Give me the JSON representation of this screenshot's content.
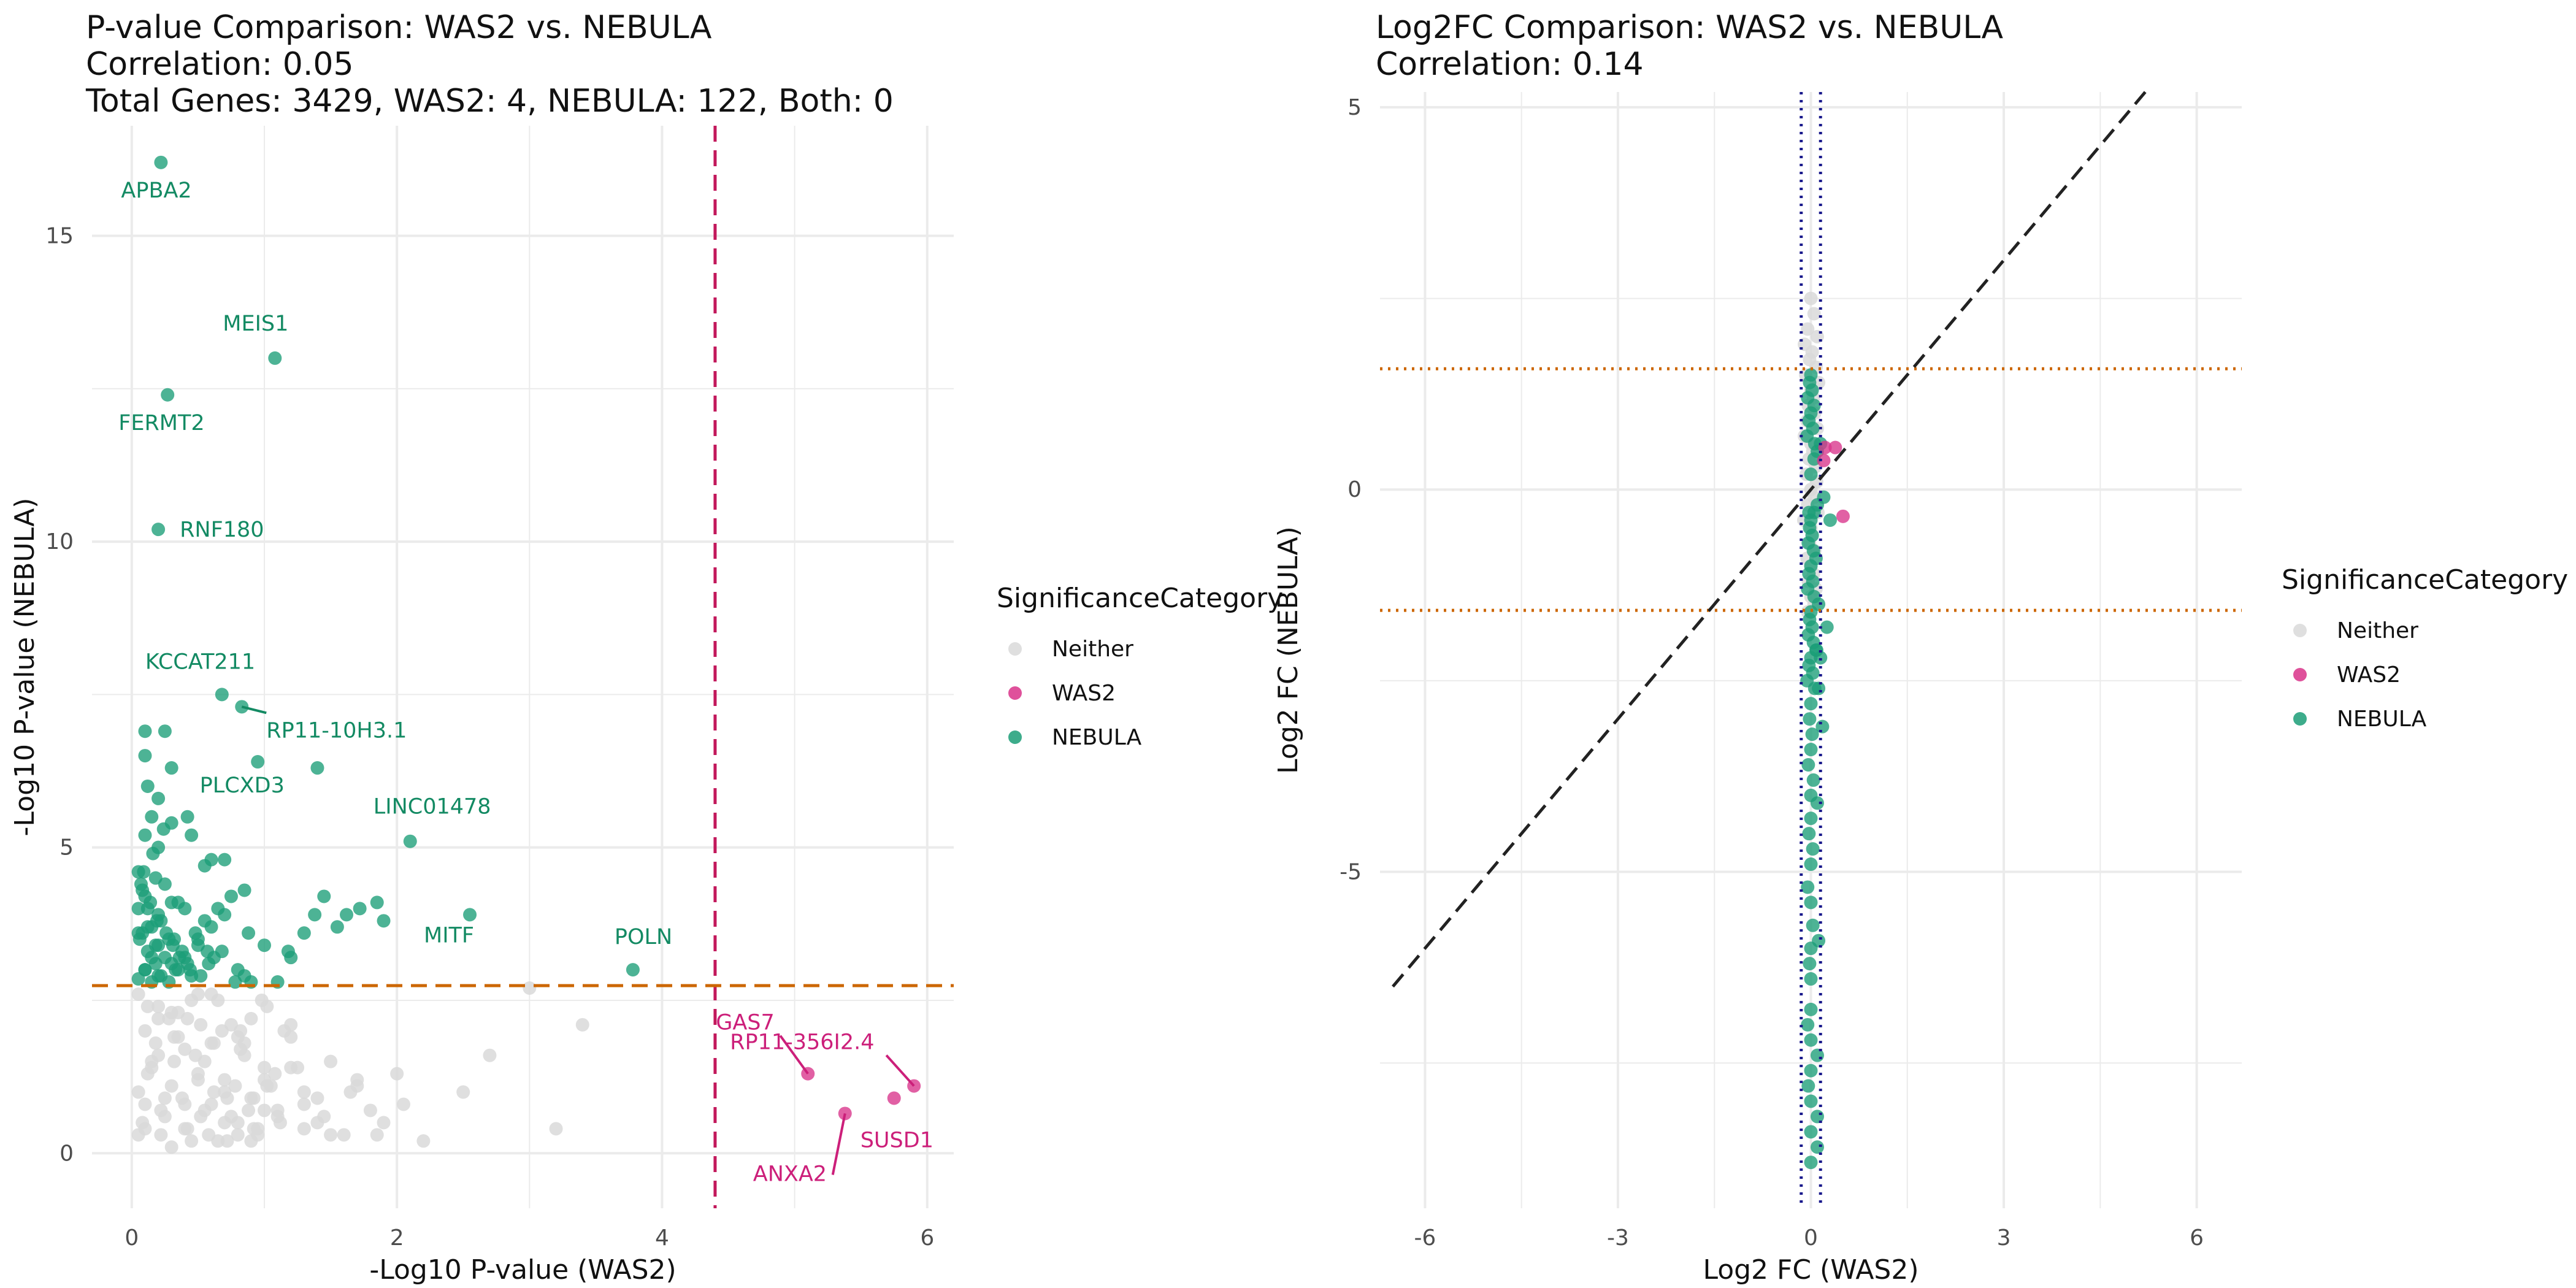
{
  "chart_data": [
    {
      "type": "scatter",
      "title_lines": [
        "P-value Comparison: WAS2 vs. NEBULA",
        "Correlation: 0.05",
        "Total Genes: 3429, WAS2: 4, NEBULA: 122, Both: 0"
      ],
      "xlabel": "-Log10 P-value (WAS2)",
      "ylabel": "-Log10 P-value (NEBULA)",
      "xlim": [
        -0.3,
        6.2
      ],
      "ylim": [
        -0.9,
        16.8
      ],
      "xticks": [
        0,
        2,
        4,
        6
      ],
      "yticks": [
        0,
        5,
        10,
        15
      ],
      "grid": true,
      "reference_lines": [
        {
          "orientation": "vertical",
          "value": 4.4,
          "color": "#c2185b",
          "style": "dashed"
        },
        {
          "orientation": "horizontal",
          "value": 2.74,
          "color": "#cc6600",
          "style": "dashed"
        }
      ],
      "legend": {
        "title": "SignificanceCategory",
        "position": "right",
        "entries": [
          "Neither",
          "WAS2",
          "NEBULA"
        ]
      },
      "colors": {
        "Neither": "#d9d9d9",
        "WAS2": "#d9338a",
        "NEBULA": "#1b9e77"
      },
      "series": [
        {
          "name": "Neither",
          "x": [
            0.05,
            0.1,
            0.15,
            0.2,
            0.25,
            0.3,
            0.35,
            0.4,
            0.45,
            0.5,
            0.55,
            0.6,
            0.65,
            0.7,
            0.75,
            0.8,
            0.85,
            0.9,
            0.95,
            1.0,
            1.1,
            1.2,
            1.3,
            1.4,
            1.5,
            1.6,
            1.7,
            1.8,
            1.9,
            2.0,
            2.2,
            2.5,
            2.7,
            3.0,
            3.2,
            3.4,
            0.1,
            0.2,
            0.3,
            0.4,
            0.5,
            0.6,
            0.7,
            0.8,
            0.9,
            1.0,
            1.2,
            1.4,
            0.15,
            0.25,
            0.35,
            0.45,
            0.55,
            0.65,
            0.75,
            0.85,
            0.95,
            1.05,
            1.15,
            1.3,
            1.5,
            1.7,
            0.05,
            0.12,
            0.22,
            0.32,
            0.42,
            0.52,
            0.62,
            0.72,
            0.82,
            0.92,
            1.02,
            1.12,
            1.25,
            1.45,
            1.65,
            1.85,
            2.05,
            0.08,
            0.18,
            0.28,
            0.38,
            0.48,
            0.58,
            0.68,
            0.78,
            0.88,
            0.98,
            1.08,
            0.05,
            0.1,
            0.2,
            0.3,
            0.4,
            0.5,
            0.6,
            0.7,
            0.8,
            0.9,
            1.0,
            1.1,
            1.2,
            1.3,
            0.12,
            0.22,
            0.32,
            0.42,
            0.52,
            0.62,
            0.72,
            0.82,
            0.92,
            1.02
          ],
          "y": [
            0.3,
            0.8,
            1.5,
            2.2,
            0.6,
            1.1,
            1.9,
            0.4,
            2.5,
            1.3,
            0.7,
            1.8,
            0.2,
            1.0,
            2.1,
            0.5,
            1.6,
            0.9,
            0.3,
            1.2,
            0.6,
            1.4,
            0.4,
            0.9,
            1.5,
            0.3,
            1.1,
            0.7,
            0.5,
            1.3,
            0.2,
            1.0,
            1.6,
            2.7,
            0.4,
            2.1,
            2.0,
            2.4,
            0.1,
            1.7,
            2.6,
            0.8,
            1.2,
            0.3,
            2.2,
            0.7,
            1.9,
            0.5,
            1.4,
            0.9,
            2.3,
            0.2,
            1.5,
            2.5,
            0.6,
            1.8,
            0.4,
            1.1,
            2.0,
            0.8,
            0.3,
            1.2,
            2.6,
            1.3,
            0.7,
            1.9,
            0.4,
            2.1,
            1.0,
            0.2,
            1.7,
            0.9,
            2.4,
            0.5,
            1.4,
            0.6,
            1.0,
            0.3,
            0.8,
            0.5,
            1.8,
            2.2,
            0.9,
            1.6,
            0.3,
            2.0,
            1.1,
            0.7,
            2.5,
            1.3,
            1.0,
            0.4,
            1.6,
            2.3,
            0.8,
            1.2,
            2.6,
            0.5,
            1.9,
            0.2,
            1.4,
            0.7,
            2.1,
            1.0,
            2.4,
            0.3,
            1.5,
            2.2,
            0.6,
            1.8,
            0.9,
            2.0,
            0.4,
            1.1
          ]
        },
        {
          "name": "NEBULA",
          "x": [
            0.22,
            1.08,
            0.27,
            0.2,
            0.68,
            0.83,
            0.1,
            0.25,
            0.1,
            0.3,
            0.12,
            0.2,
            0.15,
            0.3,
            0.1,
            0.2,
            0.42,
            0.45,
            0.05,
            0.18,
            0.25,
            0.7,
            0.6,
            0.55,
            0.08,
            0.1,
            0.3,
            0.35,
            0.12,
            0.4,
            0.2,
            0.22,
            0.15,
            0.05,
            0.28,
            0.32,
            0.5,
            0.57,
            0.62,
            0.42,
            0.8,
            0.85,
            0.9,
            1.1,
            1.18,
            1.3,
            1.38,
            1.45,
            1.55,
            1.62,
            1.72,
            1.85,
            1.9,
            2.1,
            2.55,
            3.78,
            0.12,
            0.18,
            0.25,
            0.35,
            0.45,
            0.06,
            0.1,
            0.15,
            0.2,
            0.3,
            0.38,
            0.48,
            0.55,
            0.65,
            0.75,
            0.05,
            0.08,
            0.12,
            0.18,
            0.22,
            0.28,
            0.33,
            0.4,
            0.5,
            0.6,
            0.7,
            0.85,
            0.95,
            0.07,
            0.14,
            0.19,
            0.26,
            0.31,
            0.36,
            0.44,
            0.52,
            0.58,
            0.68,
            0.78,
            0.88,
            1.0,
            1.2,
            1.4,
            0.09,
            0.16,
            0.24,
            0.05,
            0.1,
            0.15,
            0.2
          ],
          "y": [
            16.2,
            13.0,
            12.4,
            10.2,
            7.5,
            7.3,
            6.9,
            6.9,
            6.5,
            6.3,
            6.0,
            5.8,
            5.5,
            5.4,
            5.2,
            5.0,
            5.5,
            5.2,
            4.6,
            4.5,
            4.4,
            4.8,
            4.8,
            4.7,
            4.3,
            4.2,
            4.1,
            4.1,
            4.0,
            4.0,
            3.9,
            3.8,
            3.7,
            3.6,
            3.5,
            3.5,
            3.4,
            3.3,
            3.2,
            3.1,
            3.0,
            2.9,
            2.8,
            2.8,
            3.3,
            3.6,
            3.9,
            4.2,
            3.7,
            3.9,
            4.0,
            4.1,
            3.8,
            5.1,
            3.9,
            3.0,
            3.7,
            3.4,
            3.2,
            3.0,
            2.9,
            3.5,
            3.0,
            2.8,
            2.9,
            3.1,
            3.3,
            3.6,
            3.8,
            4.0,
            4.2,
            4.0,
            3.6,
            3.3,
            3.1,
            2.9,
            2.8,
            3.0,
            3.2,
            3.5,
            3.7,
            3.9,
            4.3,
            6.4,
            4.4,
            4.1,
            3.8,
            3.6,
            3.4,
            3.2,
            3.0,
            2.9,
            3.1,
            3.3,
            2.8,
            3.6,
            3.4,
            3.2,
            6.3,
            4.6,
            4.9,
            5.3,
            2.85,
            3.0,
            3.2,
            3.4
          ]
        },
        {
          "name": "WAS2",
          "x": [
            5.1,
            5.38,
            5.75,
            5.9
          ],
          "y": [
            1.3,
            0.65,
            0.9,
            1.1
          ]
        }
      ],
      "annotations": [
        {
          "text": "APBA2",
          "x": 0.22,
          "y": 16.2,
          "category": "NEBULA"
        },
        {
          "text": "MEIS1",
          "x": 1.08,
          "y": 13.0,
          "category": "NEBULA"
        },
        {
          "text": "FERMT2",
          "x": 0.27,
          "y": 12.4,
          "category": "NEBULA"
        },
        {
          "text": "RNF180",
          "x": 0.2,
          "y": 10.2,
          "category": "NEBULA"
        },
        {
          "text": "KCCAT211",
          "x": 0.68,
          "y": 7.5,
          "category": "NEBULA"
        },
        {
          "text": "RP11-10H3.1",
          "x": 0.83,
          "y": 7.3,
          "category": "NEBULA"
        },
        {
          "text": "PLCXD3",
          "x": 0.42,
          "y": 5.5,
          "category": "NEBULA"
        },
        {
          "text": "LINC01478",
          "x": 2.1,
          "y": 5.1,
          "category": "NEBULA"
        },
        {
          "text": "MITF",
          "x": 2.55,
          "y": 3.9,
          "category": "NEBULA"
        },
        {
          "text": "POLN",
          "x": 3.78,
          "y": 3.0,
          "category": "NEBULA"
        },
        {
          "text": "GAS7",
          "x": 5.1,
          "y": 1.3,
          "category": "WAS2"
        },
        {
          "text": "RP11-356I2.4",
          "x": 5.9,
          "y": 1.1,
          "category": "WAS2"
        },
        {
          "text": "SUSD1",
          "x": 5.75,
          "y": 0.9,
          "category": "WAS2"
        },
        {
          "text": "ANXA2",
          "x": 5.38,
          "y": 0.65,
          "category": "WAS2"
        }
      ]
    },
    {
      "type": "scatter",
      "title_lines": [
        "Log2FC Comparison: WAS2 vs. NEBULA",
        "Correlation: 0.14"
      ],
      "xlabel": "Log2 FC (WAS2)",
      "ylabel": "Log2 FC (NEBULA)",
      "xlim": [
        -6.7,
        6.7
      ],
      "ylim": [
        -9.4,
        5.2
      ],
      "xticks": [
        -6,
        -3,
        0,
        3,
        6
      ],
      "yticks": [
        -5,
        0,
        5
      ],
      "grid": true,
      "reference_lines": [
        {
          "orientation": "vertical",
          "value": -0.15,
          "color": "#1a1a8c",
          "style": "dotted"
        },
        {
          "orientation": "vertical",
          "value": 0.15,
          "color": "#1a1a8c",
          "style": "dotted"
        },
        {
          "orientation": "horizontal",
          "value": 1.58,
          "color": "#cc6600",
          "style": "dotted"
        },
        {
          "orientation": "horizontal",
          "value": -1.58,
          "color": "#cc6600",
          "style": "dotted"
        },
        {
          "orientation": "diagonal",
          "from": [
            -6.5,
            -6.5
          ],
          "to": [
            5.2,
            5.2
          ],
          "color": "#222222",
          "style": "dashed"
        }
      ],
      "legend": {
        "title": "SignificanceCategory",
        "position": "right",
        "entries": [
          "Neither",
          "WAS2",
          "NEBULA"
        ]
      },
      "colors": {
        "Neither": "#d9d9d9",
        "WAS2": "#d9338a",
        "NEBULA": "#1b9e77"
      },
      "series": [
        {
          "name": "Neither",
          "x": [
            0.0,
            0.05,
            -0.05,
            0.1,
            -0.1,
            0.02,
            -0.02,
            0.08,
            -0.08,
            0.12,
            0.0,
            0.04,
            -0.04,
            0.06,
            -0.06,
            0.1,
            -0.1,
            0.0,
            0.03,
            -0.03,
            0.07,
            -0.07,
            0.09,
            0.0,
            0.05,
            -0.05,
            0.11,
            -0.11,
            0.0,
            0.02,
            -0.02,
            0.06,
            -0.06,
            0.0,
            0.04,
            -0.04,
            0.08,
            0.0,
            0.05,
            -0.05
          ],
          "y": [
            2.5,
            2.3,
            2.1,
            2.0,
            1.9,
            1.8,
            1.7,
            1.6,
            1.5,
            1.4,
            1.3,
            1.2,
            1.1,
            1.0,
            0.9,
            0.8,
            0.7,
            0.6,
            0.5,
            0.4,
            0.3,
            0.2,
            0.1,
            0.0,
            -0.1,
            -0.2,
            -0.3,
            -0.4,
            -0.5,
            -0.6,
            -0.7,
            -0.8,
            -0.9,
            -1.0,
            -1.1,
            -1.2,
            -1.3,
            -1.4,
            -1.5,
            -1.6
          ]
        },
        {
          "name": "NEBULA",
          "x": [
            0.0,
            -0.02,
            0.02,
            -0.05,
            0.05,
            0.0,
            -0.03,
            0.03,
            -0.06,
            0.06,
            0.1,
            0.0,
            -0.02,
            0.02,
            -0.04,
            0.04,
            0.08,
            0.0,
            -0.03,
            0.03,
            -0.05,
            0.05,
            0.12,
            0.0,
            -0.02,
            0.02,
            -0.04,
            0.04,
            0.09,
            0.0,
            -0.03,
            0.03,
            -0.06,
            0.06,
            0.15,
            0.0,
            -0.02,
            0.02,
            0.0,
            -0.04,
            0.04,
            0.0,
            0.1,
            0.0,
            -0.03,
            0.03,
            0.0,
            -0.05,
            0.0,
            0.03,
            0.0,
            -0.02,
            0.0,
            0.12,
            0.0,
            -0.05,
            0.0,
            0.1,
            0.0,
            -0.04,
            0.0,
            0.1,
            0.0,
            0.1,
            0.0,
            0.05,
            0.1,
            0.2,
            0.3,
            -0.03,
            0.0,
            0.05,
            0.15,
            0.25,
            0.08,
            0.12,
            0.18
          ],
          "y": [
            1.5,
            1.4,
            1.3,
            1.2,
            1.1,
            1.0,
            0.9,
            0.8,
            0.7,
            0.6,
            0.5,
            -0.4,
            -0.5,
            -0.6,
            -0.7,
            -0.8,
            -0.9,
            -1.0,
            -1.1,
            -1.2,
            -1.3,
            -1.4,
            -1.5,
            -1.6,
            -1.7,
            -1.8,
            -1.9,
            -2.0,
            -2.1,
            -2.2,
            -2.3,
            -2.4,
            -2.5,
            -2.6,
            -2.2,
            -2.8,
            -3.0,
            -3.2,
            -3.4,
            -3.6,
            -3.8,
            -4.0,
            -4.1,
            -4.3,
            -4.5,
            -4.7,
            -4.9,
            -5.2,
            -5.4,
            -5.7,
            -6.0,
            -6.2,
            -6.4,
            -5.9,
            -6.8,
            -7.0,
            -7.2,
            -7.4,
            -7.6,
            -7.8,
            -8.0,
            -8.2,
            -8.4,
            -8.6,
            -8.8,
            -0.3,
            -0.2,
            -0.1,
            -0.4,
            -0.3,
            0.2,
            0.4,
            0.6,
            -1.8,
            -2.1,
            -2.6,
            -3.1
          ]
        },
        {
          "name": "WAS2",
          "x": [
            0.22,
            0.38,
            0.2,
            0.5
          ],
          "y": [
            0.55,
            0.55,
            0.38,
            -0.35
          ]
        }
      ]
    }
  ]
}
